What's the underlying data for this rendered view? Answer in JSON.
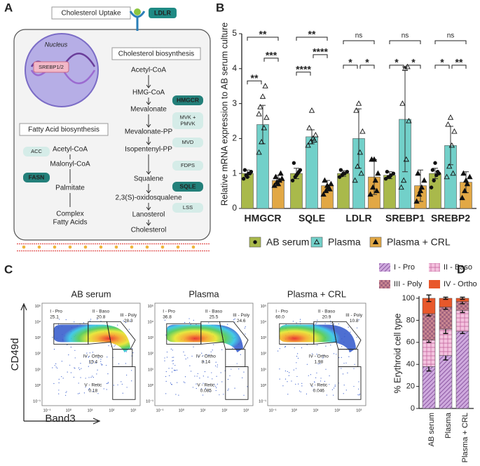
{
  "panel_labels": [
    "A",
    "B",
    "C",
    "D"
  ],
  "panel_a": {
    "uptake_title": "Cholesterol Uptake",
    "receptor": "LDLR",
    "nucleus": "Nucleus",
    "factor": "SREBP1/2",
    "chol_title": "Cholesterol biosynthesis",
    "chol_pathway": [
      "Acetyl-CoA",
      "HMG-CoA",
      "Mevalonate",
      "Mevalonate-PP",
      "Isopentenyl-PP",
      "Squalene",
      "2,3(S)-oxidosqualene",
      "Lanosterol",
      "Cholesterol"
    ],
    "chol_enzymes": [
      {
        "lines": [
          "HMGCR"
        ],
        "style": "dark"
      },
      {
        "lines": [
          "MVK +",
          "PMVK"
        ],
        "style": "light"
      },
      {
        "lines": [
          "MVD"
        ],
        "style": "light"
      },
      {
        "lines": [
          "FDPS"
        ],
        "style": "light"
      },
      {
        "lines": [
          "SQLE"
        ],
        "style": "dark"
      },
      {
        "lines": [
          "LSS"
        ],
        "style": "light"
      }
    ],
    "fa_title": "Fatty Acid biosynthesis",
    "fa_pathway": [
      {
        "lines": [
          "Acetyl-CoA"
        ]
      },
      {
        "lines": [
          "Malonyl-CoA"
        ]
      },
      {
        "lines": [
          "Palmitate"
        ]
      },
      {
        "lines": [
          "Complex",
          "Fatty Acids"
        ]
      }
    ],
    "fa_enzymes": [
      {
        "lines": [
          "ACC"
        ],
        "style": "light"
      },
      {
        "lines": [
          "FASN"
        ],
        "style": "dark"
      }
    ]
  },
  "chart_data": [
    {
      "type": "bar",
      "ylabel": "Relative mRNA expression to AB serum culture",
      "categories": [
        "HMGCR",
        "SQLE",
        "LDLR",
        "SREBP1",
        "SREBP2"
      ],
      "ylim": [
        0,
        5
      ],
      "yticks": [
        0,
        1,
        2,
        3,
        4,
        5
      ],
      "series": [
        {
          "name": "AB serum",
          "color": "#a9b94b",
          "marker": "circle",
          "values": [
            1.0,
            1.0,
            1.0,
            0.95,
            1.0
          ],
          "errors": [
            0.1,
            0.15,
            0.08,
            0.1,
            0.15
          ],
          "points": [
            [
              0.85,
              0.95,
              1.0,
              1.05,
              1.1,
              0.9,
              1.0
            ],
            [
              0.8,
              0.9,
              1.0,
              1.1,
              1.3,
              0.95,
              1.05
            ],
            [
              0.9,
              0.95,
              1.0,
              1.05,
              1.1,
              1.0
            ],
            [
              0.85,
              0.9,
              0.95,
              1.0,
              1.05,
              0.9
            ],
            [
              0.6,
              0.8,
              0.95,
              1.0,
              1.1,
              1.3,
              1.05
            ]
          ]
        },
        {
          "name": "Plasma",
          "color": "#72d0c9",
          "marker": "triangle-open",
          "values": [
            2.4,
            2.05,
            2.0,
            2.55,
            1.8
          ],
          "errors": [
            0.55,
            0.2,
            0.85,
            1.5,
            0.55
          ],
          "points": [
            [
              1.6,
              1.9,
              2.3,
              2.6,
              2.9,
              3.2,
              3.5,
              2.7
            ],
            [
              1.8,
              1.9,
              2.0,
              2.1,
              2.3,
              2.8,
              1.95
            ],
            [
              0.8,
              1.2,
              1.6,
              2.2,
              2.8,
              3.0,
              1.0
            ],
            [
              0.6,
              0.8,
              1.4,
              2.5,
              3.0,
              4.0,
              4.05
            ],
            [
              0.9,
              1.2,
              1.8,
              2.2,
              2.4,
              2.6,
              1.0
            ]
          ]
        },
        {
          "name": "Plasma + CRL",
          "color": "#e2a845",
          "marker": "triangle",
          "values": [
            0.8,
            0.65,
            0.9,
            0.65,
            0.75
          ],
          "errors": [
            0.15,
            0.15,
            0.5,
            0.45,
            0.3
          ],
          "points": [
            [
              0.65,
              0.75,
              0.8,
              0.85,
              0.9,
              0.7,
              1.0
            ],
            [
              0.4,
              0.5,
              0.6,
              0.7,
              0.8,
              0.65,
              0.55
            ],
            [
              0.4,
              0.6,
              0.8,
              1.0,
              1.4,
              1.4,
              0.5
            ],
            [
              0.2,
              0.4,
              0.6,
              0.8,
              1.0,
              0.5
            ],
            [
              0.3,
              0.5,
              0.7,
              0.9,
              1.0,
              0.8
            ]
          ]
        }
      ],
      "significance": [
        [
          "**",
          "***",
          "**"
        ],
        [
          "****",
          "****",
          "**"
        ],
        [
          "*",
          "*",
          "ns"
        ],
        [
          "*",
          "*",
          "ns"
        ],
        [
          "*",
          "**",
          "ns"
        ]
      ]
    },
    {
      "type": "stacked_bar",
      "ylabel": "% Erythroid cell type",
      "categories": [
        "AB serum",
        "Plasma",
        "Plasma + CRL"
      ],
      "ylim": [
        0,
        100
      ],
      "yticks": [
        0,
        20,
        40,
        60,
        80,
        100
      ],
      "series": [
        {
          "name": "I - Pro",
          "color": "#cfaade",
          "pattern": "hatch",
          "values": [
            38,
            48,
            70
          ],
          "errors": [
            4,
            4,
            2
          ]
        },
        {
          "name": "II - Baso",
          "color": "#f4c3df",
          "pattern": "grid",
          "values": [
            24,
            24,
            19
          ],
          "errors": [
            2,
            4,
            2
          ]
        },
        {
          "name": "III - Poly",
          "color": "#c98690",
          "pattern": "check",
          "values": [
            24,
            20,
            8
          ],
          "errors": [
            2,
            2,
            2
          ]
        },
        {
          "name": "IV - Ortho",
          "color": "#e8582b",
          "pattern": "solid",
          "values": [
            14,
            8,
            3
          ],
          "errors": [
            3,
            1,
            1
          ]
        }
      ]
    }
  ],
  "panel_c": {
    "xlabel": "Band3",
    "ylabel": "CD49d",
    "xticks": [
      "10⁻¹",
      "10⁰",
      "10¹",
      "10²",
      "10³"
    ],
    "yticks": [
      "10⁻¹",
      "10⁰",
      "10¹",
      "10²",
      "10³",
      "10⁴",
      "10⁵"
    ],
    "plots": [
      {
        "title": "AB serum",
        "gates": [
          {
            "name": "I - Pro",
            "value": "25.1"
          },
          {
            "name": "II - Baso",
            "value": "20.8"
          },
          {
            "name": "III - Poly",
            "value": "28.3"
          },
          {
            "name": "IV - Ortho",
            "value": "15.4"
          },
          {
            "name": "V - Retic",
            "value": "0.18"
          }
        ]
      },
      {
        "title": "Plasma",
        "gates": [
          {
            "name": "I - Pro",
            "value": "36.8"
          },
          {
            "name": "II - Baso",
            "value": "25.5"
          },
          {
            "name": "III - Poly",
            "value": "24.6"
          },
          {
            "name": "IV - Ortho",
            "value": "8.14"
          },
          {
            "name": "V - Retic",
            "value": "0.085"
          }
        ]
      },
      {
        "title": "Plasma + CRL",
        "gates": [
          {
            "name": "I - Pro",
            "value": "60.0"
          },
          {
            "name": "II - Baso",
            "value": "20.9"
          },
          {
            "name": "III - Poly",
            "value": "10.8"
          },
          {
            "name": "IV - Ortho",
            "value": "1.98"
          },
          {
            "name": "V - Retic",
            "value": "0.046"
          }
        ]
      }
    ]
  }
}
